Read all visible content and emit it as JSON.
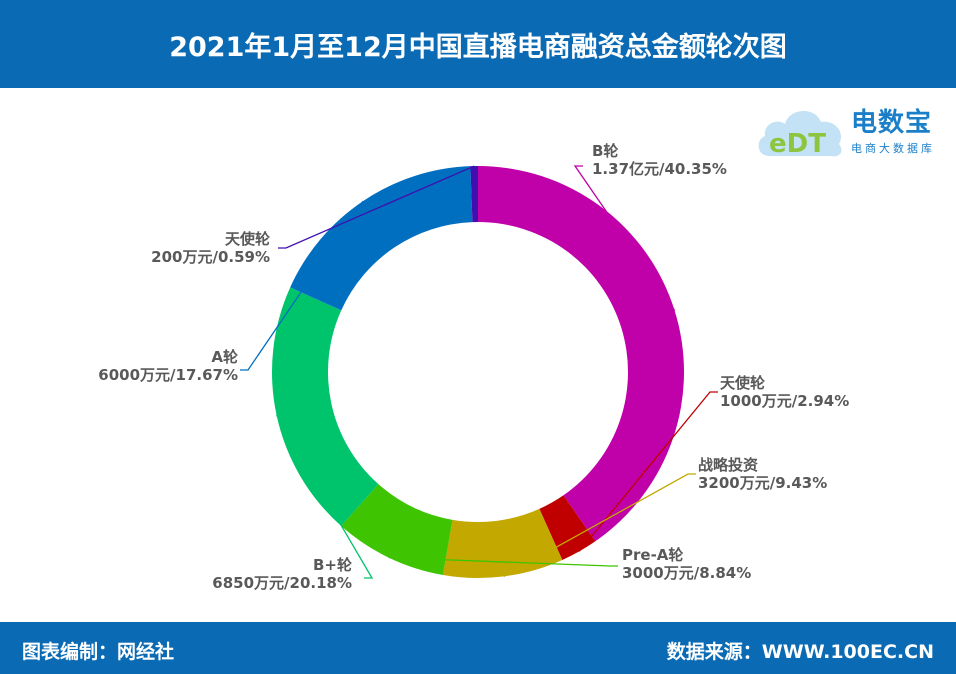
{
  "title": "2021年1月至12月中国直播电商融资总金额轮次图",
  "footer": {
    "left": "图表编制：网经社",
    "right": "数据来源：WWW.100EC.CN"
  },
  "logo": {
    "brand": "电数宝",
    "subtitle": "电商大数据库",
    "mark_text": "eDT"
  },
  "chart_data": {
    "type": "pie",
    "variant": "donut",
    "start": "top, clockwise",
    "slices": [
      {
        "name": "B轮",
        "value_label": "1.37亿元/40.35%",
        "percent": 40.35,
        "color": "#c000a8"
      },
      {
        "name": "天使轮",
        "value_label": "1000万元/2.94%",
        "percent": 2.94,
        "color": "#c00000"
      },
      {
        "name": "战略投资",
        "value_label": "3200万元/9.43%",
        "percent": 9.43,
        "color": "#c3a800"
      },
      {
        "name": "Pre-A轮",
        "value_label": "3000万元/8.84%",
        "percent": 8.84,
        "color": "#3ec400"
      },
      {
        "name": "B+轮",
        "value_label": "6850万元/20.18%",
        "percent": 20.18,
        "color": "#00c46c"
      },
      {
        "name": "A轮",
        "value_label": "6000万元/17.67%",
        "percent": 17.67,
        "color": "#006fc0"
      },
      {
        "name": "天使轮",
        "value_label": "200万元/0.59%",
        "percent": 0.59,
        "color": "#3f0fb0"
      }
    ]
  }
}
